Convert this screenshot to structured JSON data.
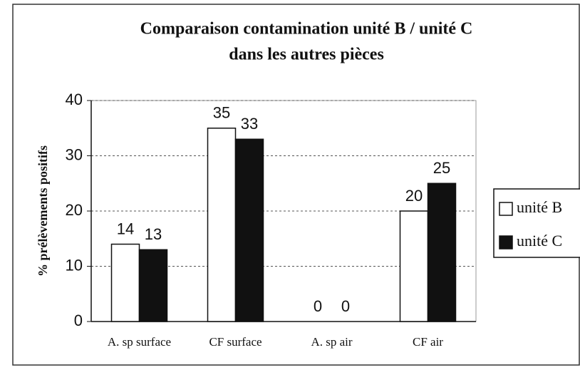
{
  "chart_data": {
    "type": "bar",
    "title": [
      "Comparaison contamination unité B / unité C",
      "dans les autres pièces"
    ],
    "y_label": "% prélèvements positifs",
    "categories": [
      "A. sp surface",
      "CF surface",
      "A. sp air",
      "CF air"
    ],
    "series": [
      {
        "name": "unité B",
        "color": "#ffffff",
        "values": [
          14,
          35,
          0,
          20
        ]
      },
      {
        "name": "unité C",
        "color": "#111111",
        "values": [
          13,
          33,
          0,
          25
        ]
      }
    ],
    "ylim": [
      0,
      40
    ],
    "yticks": [
      0,
      10,
      20,
      30,
      40
    ],
    "grid": true,
    "legend": "right"
  }
}
